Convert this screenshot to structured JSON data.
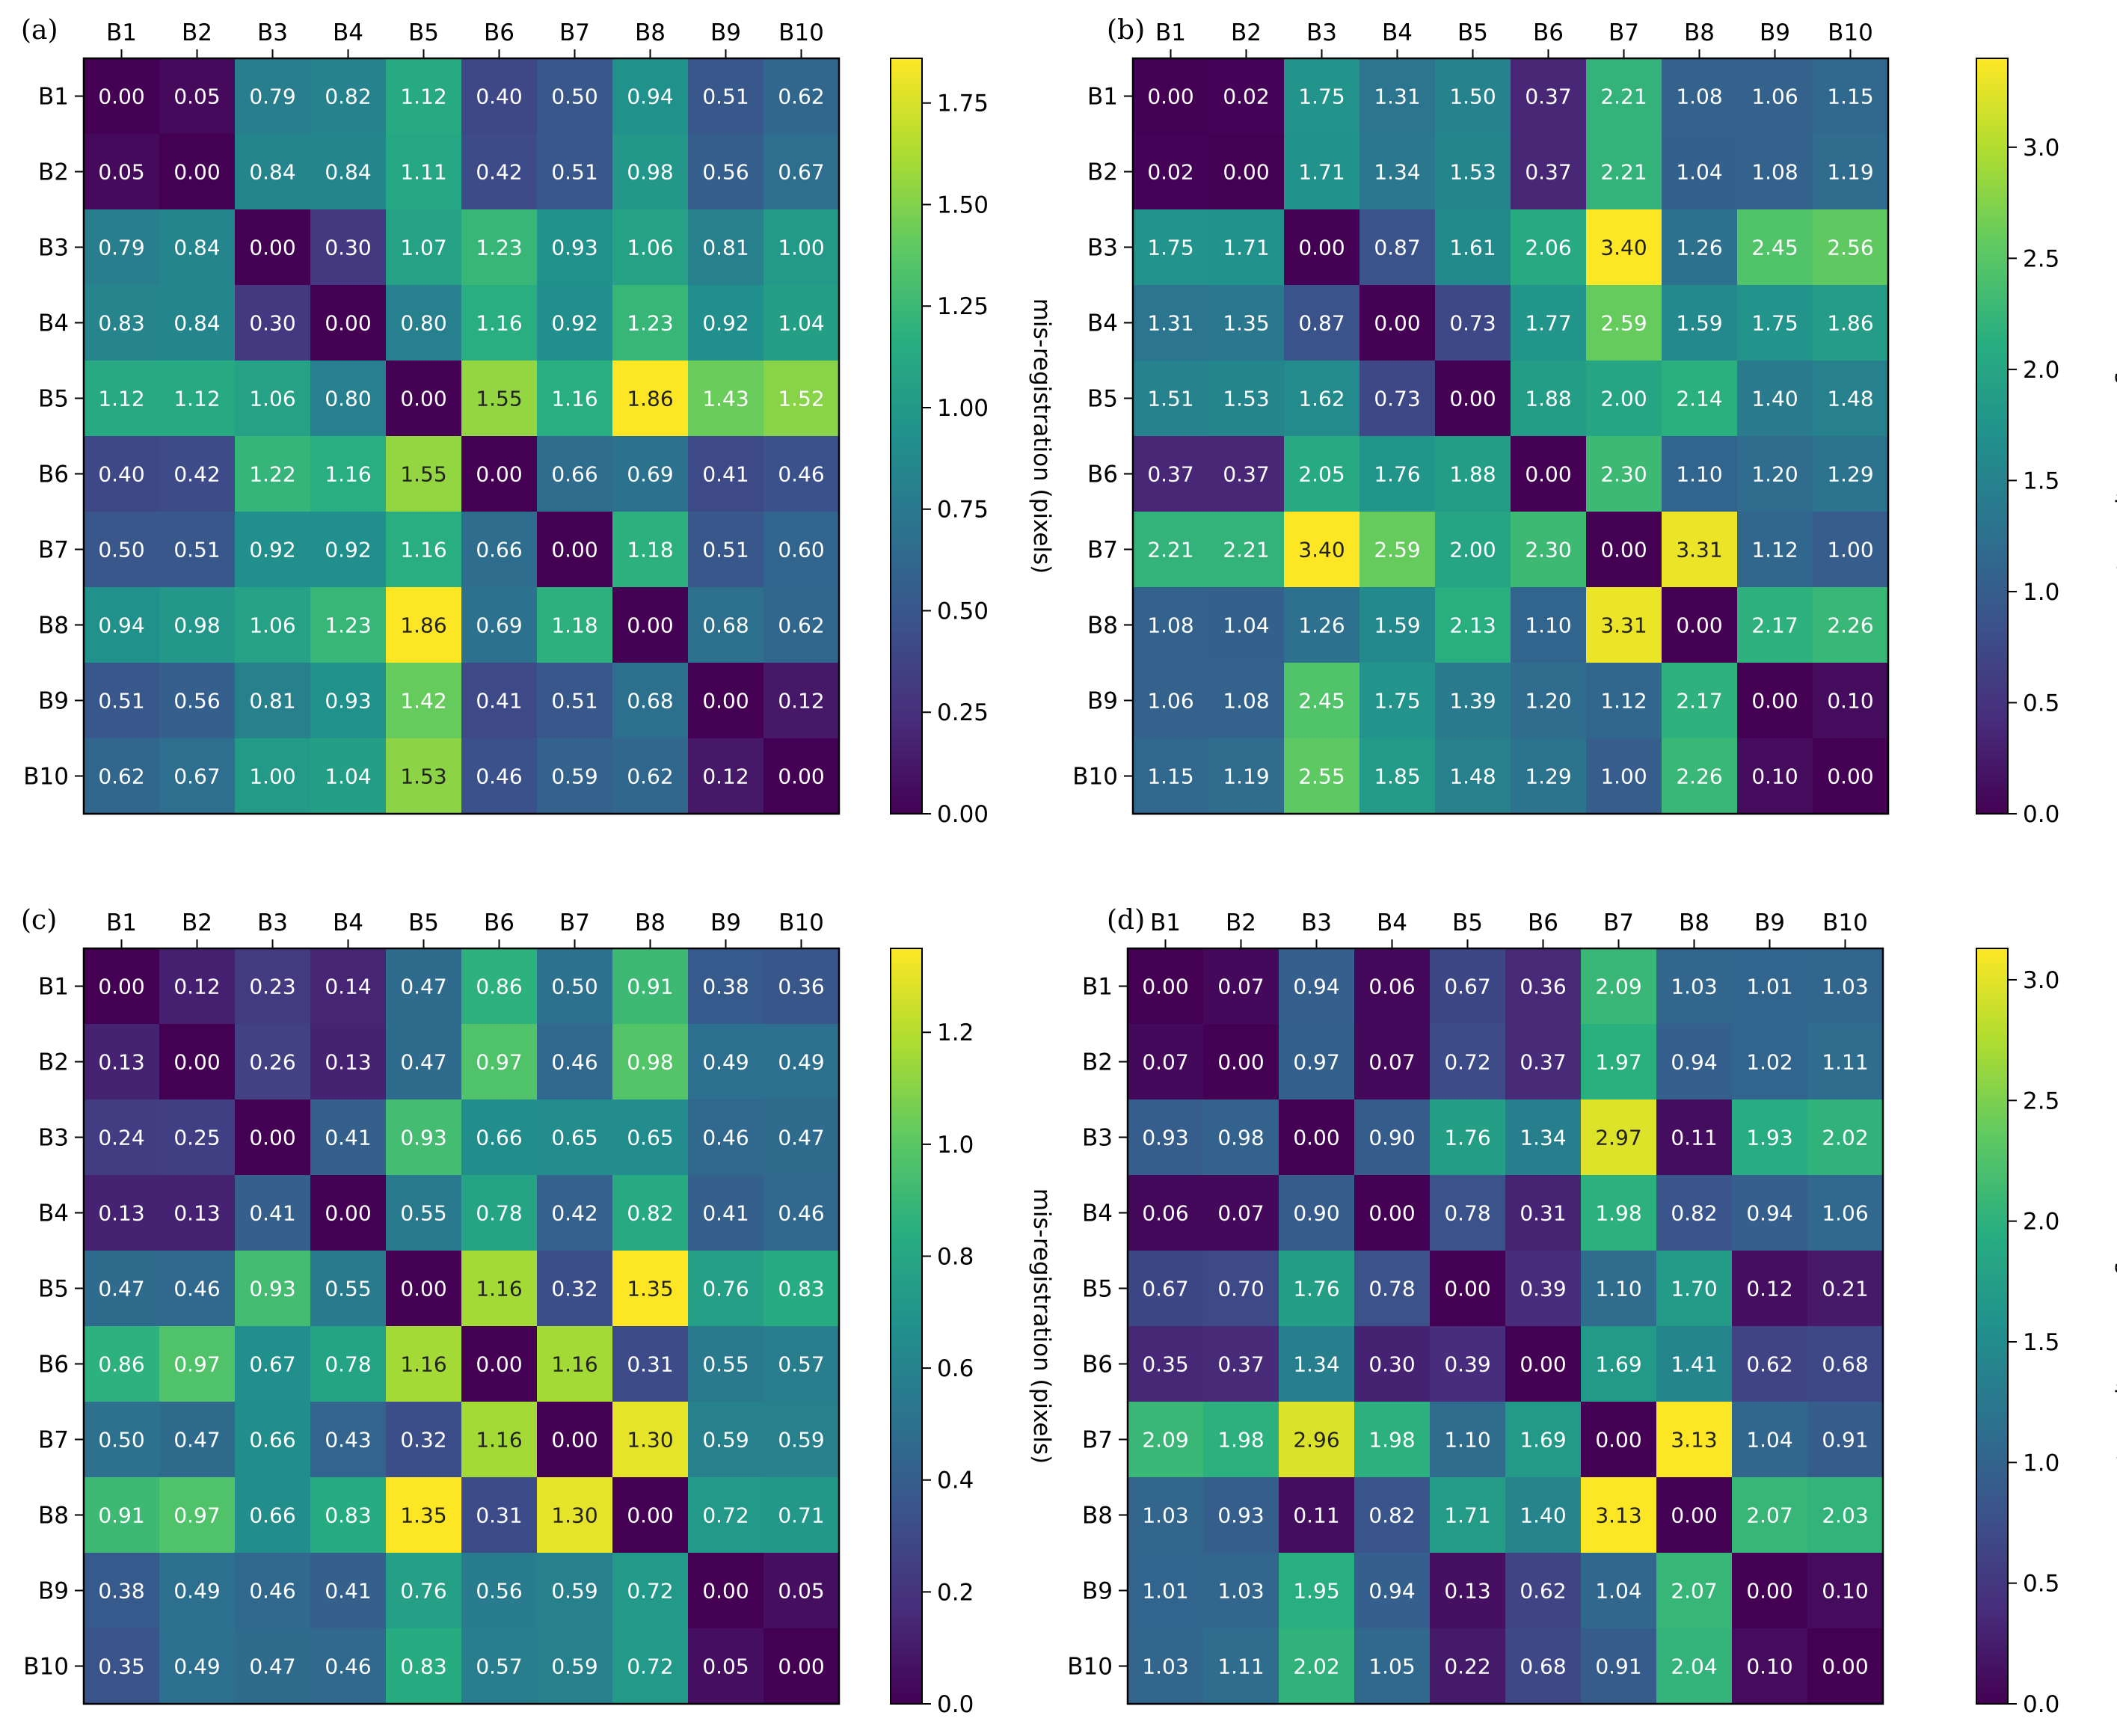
{
  "colormap": "viridis",
  "colors": {
    "text_light": "#ffffff",
    "axis": "#000000",
    "background": "#ffffff"
  },
  "chart_data": [
    {
      "panel": "(a)",
      "type": "heatmap",
      "x_categories": [
        "B1",
        "B2",
        "B3",
        "B4",
        "B5",
        "B6",
        "B7",
        "B8",
        "B9",
        "B10"
      ],
      "y_categories": [
        "B1",
        "B2",
        "B3",
        "B4",
        "B5",
        "B6",
        "B7",
        "B8",
        "B9",
        "B10"
      ],
      "values": [
        [
          0.0,
          0.05,
          0.79,
          0.82,
          1.12,
          0.4,
          0.5,
          0.94,
          0.51,
          0.62
        ],
        [
          0.05,
          0.0,
          0.84,
          0.84,
          1.11,
          0.42,
          0.51,
          0.98,
          0.56,
          0.67
        ],
        [
          0.79,
          0.84,
          0.0,
          0.3,
          1.07,
          1.23,
          0.93,
          1.06,
          0.81,
          1.0
        ],
        [
          0.83,
          0.84,
          0.3,
          0.0,
          0.8,
          1.16,
          0.92,
          1.23,
          0.92,
          1.04
        ],
        [
          1.12,
          1.12,
          1.06,
          0.8,
          0.0,
          1.55,
          1.16,
          1.86,
          1.43,
          1.52
        ],
        [
          0.4,
          0.42,
          1.22,
          1.16,
          1.55,
          0.0,
          0.66,
          0.69,
          0.41,
          0.46
        ],
        [
          0.5,
          0.51,
          0.92,
          0.92,
          1.16,
          0.66,
          0.0,
          1.18,
          0.51,
          0.6
        ],
        [
          0.94,
          0.98,
          1.06,
          1.23,
          1.86,
          0.69,
          1.18,
          0.0,
          0.68,
          0.62
        ],
        [
          0.51,
          0.56,
          0.81,
          0.93,
          1.42,
          0.41,
          0.51,
          0.68,
          0.0,
          0.12
        ],
        [
          0.62,
          0.67,
          1.0,
          1.04,
          1.53,
          0.46,
          0.59,
          0.62,
          0.12,
          0.0
        ]
      ],
      "colorbar": {
        "label": "mis-registration (pixels)",
        "range": [
          0.0,
          1.86
        ],
        "ticks": [
          "0.00",
          "0.25",
          "0.50",
          "0.75",
          "1.00",
          "1.25",
          "1.50",
          "1.75"
        ]
      }
    },
    {
      "panel": "(b)",
      "type": "heatmap",
      "x_categories": [
        "B1",
        "B2",
        "B3",
        "B4",
        "B5",
        "B6",
        "B7",
        "B8",
        "B9",
        "B10"
      ],
      "y_categories": [
        "B1",
        "B2",
        "B3",
        "B4",
        "B5",
        "B6",
        "B7",
        "B8",
        "B9",
        "B10"
      ],
      "values": [
        [
          0.0,
          0.02,
          1.75,
          1.31,
          1.5,
          0.37,
          2.21,
          1.08,
          1.06,
          1.15
        ],
        [
          0.02,
          0.0,
          1.71,
          1.34,
          1.53,
          0.37,
          2.21,
          1.04,
          1.08,
          1.19
        ],
        [
          1.75,
          1.71,
          0.0,
          0.87,
          1.61,
          2.06,
          3.4,
          1.26,
          2.45,
          2.56
        ],
        [
          1.31,
          1.35,
          0.87,
          0.0,
          0.73,
          1.77,
          2.59,
          1.59,
          1.75,
          1.86
        ],
        [
          1.51,
          1.53,
          1.62,
          0.73,
          0.0,
          1.88,
          2.0,
          2.14,
          1.4,
          1.48
        ],
        [
          0.37,
          0.37,
          2.05,
          1.76,
          1.88,
          0.0,
          2.3,
          1.1,
          1.2,
          1.29
        ],
        [
          2.21,
          2.21,
          3.4,
          2.59,
          2.0,
          2.3,
          0.0,
          3.31,
          1.12,
          1.0
        ],
        [
          1.08,
          1.04,
          1.26,
          1.59,
          2.13,
          1.1,
          3.31,
          0.0,
          2.17,
          2.26
        ],
        [
          1.06,
          1.08,
          2.45,
          1.75,
          1.39,
          1.2,
          1.12,
          2.17,
          0.0,
          0.1
        ],
        [
          1.15,
          1.19,
          2.55,
          1.85,
          1.48,
          1.29,
          1.0,
          2.26,
          0.1,
          0.0
        ]
      ],
      "colorbar": {
        "label": "mis-registration (pixels)",
        "range": [
          0.0,
          3.4
        ],
        "ticks": [
          "0.0",
          "0.5",
          "1.0",
          "1.5",
          "2.0",
          "2.5",
          "3.0"
        ]
      }
    },
    {
      "panel": "(c)",
      "type": "heatmap",
      "x_categories": [
        "B1",
        "B2",
        "B3",
        "B4",
        "B5",
        "B6",
        "B7",
        "B8",
        "B9",
        "B10"
      ],
      "y_categories": [
        "B1",
        "B2",
        "B3",
        "B4",
        "B5",
        "B6",
        "B7",
        "B8",
        "B9",
        "B10"
      ],
      "values": [
        [
          0.0,
          0.12,
          0.23,
          0.14,
          0.47,
          0.86,
          0.5,
          0.91,
          0.38,
          0.36
        ],
        [
          0.13,
          0.0,
          0.26,
          0.13,
          0.47,
          0.97,
          0.46,
          0.98,
          0.49,
          0.49
        ],
        [
          0.24,
          0.25,
          0.0,
          0.41,
          0.93,
          0.66,
          0.65,
          0.65,
          0.46,
          0.47
        ],
        [
          0.13,
          0.13,
          0.41,
          0.0,
          0.55,
          0.78,
          0.42,
          0.82,
          0.41,
          0.46
        ],
        [
          0.47,
          0.46,
          0.93,
          0.55,
          0.0,
          1.16,
          0.32,
          1.35,
          0.76,
          0.83
        ],
        [
          0.86,
          0.97,
          0.67,
          0.78,
          1.16,
          0.0,
          1.16,
          0.31,
          0.55,
          0.57
        ],
        [
          0.5,
          0.47,
          0.66,
          0.43,
          0.32,
          1.16,
          0.0,
          1.3,
          0.59,
          0.59
        ],
        [
          0.91,
          0.97,
          0.66,
          0.83,
          1.35,
          0.31,
          1.3,
          0.0,
          0.72,
          0.71
        ],
        [
          0.38,
          0.49,
          0.46,
          0.41,
          0.76,
          0.56,
          0.59,
          0.72,
          0.0,
          0.05
        ],
        [
          0.35,
          0.49,
          0.47,
          0.46,
          0.83,
          0.57,
          0.59,
          0.72,
          0.05,
          0.0
        ]
      ],
      "colorbar": {
        "label": "mis-registration (pixels)",
        "range": [
          0.0,
          1.35
        ],
        "ticks": [
          "0.0",
          "0.2",
          "0.4",
          "0.6",
          "0.8",
          "1.0",
          "1.2"
        ]
      }
    },
    {
      "panel": "(d)",
      "type": "heatmap",
      "x_categories": [
        "B1",
        "B2",
        "B3",
        "B4",
        "B5",
        "B6",
        "B7",
        "B8",
        "B9",
        "B10"
      ],
      "y_categories": [
        "B1",
        "B2",
        "B3",
        "B4",
        "B5",
        "B6",
        "B7",
        "B8",
        "B9",
        "B10"
      ],
      "values": [
        [
          0.0,
          0.07,
          0.94,
          0.06,
          0.67,
          0.36,
          2.09,
          1.03,
          1.01,
          1.03
        ],
        [
          0.07,
          0.0,
          0.97,
          0.07,
          0.72,
          0.37,
          1.97,
          0.94,
          1.02,
          1.11
        ],
        [
          0.93,
          0.98,
          0.0,
          0.9,
          1.76,
          1.34,
          2.97,
          0.11,
          1.93,
          2.02
        ],
        [
          0.06,
          0.07,
          0.9,
          0.0,
          0.78,
          0.31,
          1.98,
          0.82,
          0.94,
          1.06
        ],
        [
          0.67,
          0.7,
          1.76,
          0.78,
          0.0,
          0.39,
          1.1,
          1.7,
          0.12,
          0.21
        ],
        [
          0.35,
          0.37,
          1.34,
          0.3,
          0.39,
          0.0,
          1.69,
          1.41,
          0.62,
          0.68
        ],
        [
          2.09,
          1.98,
          2.96,
          1.98,
          1.1,
          1.69,
          0.0,
          3.13,
          1.04,
          0.91
        ],
        [
          1.03,
          0.93,
          0.11,
          0.82,
          1.71,
          1.4,
          3.13,
          0.0,
          2.07,
          2.03
        ],
        [
          1.01,
          1.03,
          1.95,
          0.94,
          0.13,
          0.62,
          1.04,
          2.07,
          0.0,
          0.1
        ],
        [
          1.03,
          1.11,
          2.02,
          1.05,
          0.22,
          0.68,
          0.91,
          2.04,
          0.1,
          0.0
        ]
      ],
      "colorbar": {
        "label": "mis-registration (pixels)",
        "range": [
          0.0,
          3.13
        ],
        "ticks": [
          "0.0",
          "0.5",
          "1.0",
          "1.5",
          "2.0",
          "2.5",
          "3.0"
        ]
      }
    }
  ]
}
